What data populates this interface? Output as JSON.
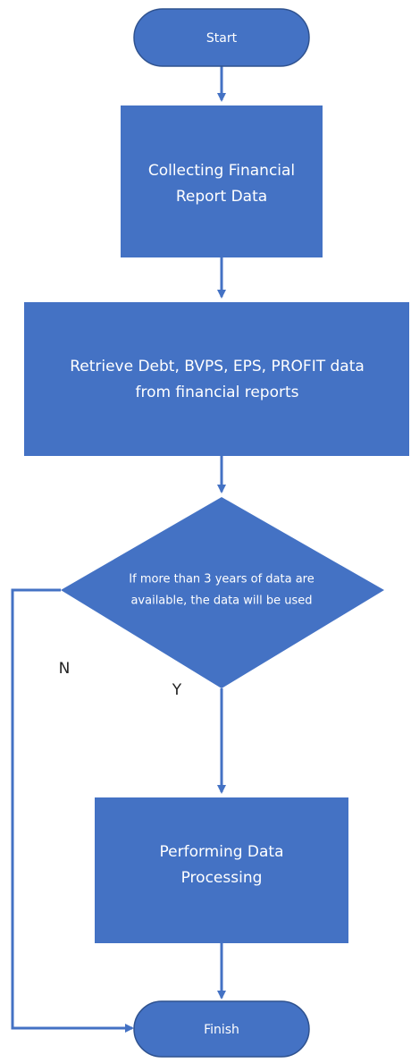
{
  "nodes": [
    {
      "label": "Start"
    },
    {
      "label": [
        "Collecting Financial",
        "Report Data"
      ]
    },
    {
      "label": [
        "Retrieve Debt, BVPS, EPS, PROFIT data",
        "from financial reports"
      ]
    },
    {
      "label": [
        "If more than 3 years of data are",
        "available, the data will be used"
      ]
    },
    {
      "label": [
        "Performing Data",
        "Processing"
      ]
    },
    {
      "label": "Finish"
    }
  ],
  "edges": [
    {
      "label": "N"
    },
    {
      "label": "Y"
    }
  ]
}
